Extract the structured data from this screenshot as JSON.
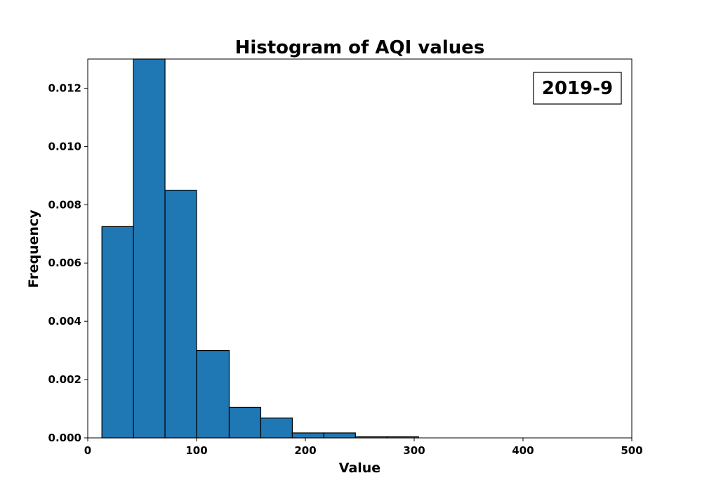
{
  "chart_data": {
    "type": "bar",
    "title": "Histogram of AQI values",
    "xlabel": "Value",
    "ylabel": "Frequency",
    "annotation": "2019-9",
    "legend": "none",
    "grid": false,
    "xlim": [
      0,
      500
    ],
    "ylim": [
      0,
      0.013
    ],
    "xticks": [
      "0",
      "100",
      "200",
      "300",
      "400",
      "500"
    ],
    "xtick_values": [
      0,
      100,
      200,
      300,
      400,
      500
    ],
    "yticks": [
      "0.000",
      "0.002",
      "0.004",
      "0.006",
      "0.008",
      "0.010",
      "0.012"
    ],
    "ytick_values": [
      0,
      0.002,
      0.004,
      0.006,
      0.008,
      0.01,
      0.012
    ],
    "bin_edges": [
      13,
      42,
      71,
      100,
      130,
      159,
      188,
      217,
      246,
      275,
      304
    ],
    "values": [
      0.00725,
      0.013,
      0.0085,
      0.003,
      0.00105,
      0.00068,
      0.00017,
      0.00017,
      4e-05,
      4e-05
    ],
    "bar_color": "#1f77b4",
    "edge_color": "#000000"
  }
}
